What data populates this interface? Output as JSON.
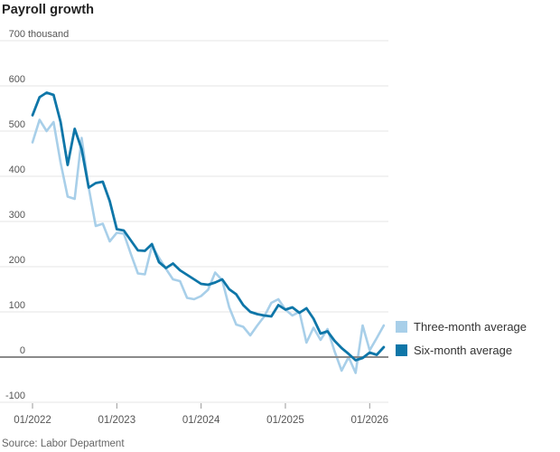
{
  "title": "Payroll growth",
  "source": "Source: Labor Department",
  "legend": [
    {
      "label": "Three-month average",
      "color": "#a8cfe9"
    },
    {
      "label": "Six-month average",
      "color": "#0e76a8"
    }
  ],
  "colors": {
    "gridline": "#e4e4e4",
    "zero_line": "#8a8a8a",
    "tick": "#999999",
    "axis_text": "#555555"
  },
  "chart_data": {
    "type": "line",
    "title": "Payroll growth",
    "y_unit": "thousand",
    "ylim": [
      -100,
      700
    ],
    "grid": true,
    "legend_position": "right",
    "y_ticks": [
      700,
      600,
      500,
      400,
      300,
      200,
      100,
      0,
      -100
    ],
    "x_ticks": [
      {
        "month_index": 0,
        "label": "01/2022"
      },
      {
        "month_index": 12,
        "label": "01/2023"
      },
      {
        "month_index": 24,
        "label": "01/2024"
      },
      {
        "month_index": 36,
        "label": "01/2025"
      },
      {
        "month_index": 48,
        "label": "01/2026"
      }
    ],
    "x": [
      "01/2022",
      "02/2022",
      "03/2022",
      "04/2022",
      "05/2022",
      "06/2022",
      "07/2022",
      "08/2022",
      "09/2022",
      "10/2022",
      "11/2022",
      "12/2022",
      "01/2023",
      "02/2023",
      "03/2023",
      "04/2023",
      "05/2023",
      "06/2023",
      "07/2023",
      "08/2023",
      "09/2023",
      "10/2023",
      "11/2023",
      "12/2023",
      "01/2024",
      "02/2024",
      "03/2024",
      "04/2024",
      "05/2024",
      "06/2024",
      "07/2024",
      "08/2024",
      "09/2024",
      "10/2024",
      "11/2024",
      "12/2024",
      "01/2025",
      "02/2025",
      "03/2025",
      "04/2025",
      "05/2025",
      "06/2025",
      "07/2025",
      "08/2025",
      "09/2025",
      "10/2025",
      "11/2025",
      "12/2025",
      "01/2026",
      "02/2026",
      "03/2026"
    ],
    "series": [
      {
        "name": "Three-month average",
        "color": "#a8cfe9",
        "values": [
          475,
          525,
          500,
          520,
          430,
          355,
          350,
          485,
          375,
          290,
          295,
          256,
          275,
          273,
          228,
          185,
          183,
          246,
          220,
          195,
          172,
          168,
          131,
          128,
          135,
          149,
          187,
          170,
          110,
          72,
          67,
          48,
          70,
          90,
          120,
          128,
          105,
          92,
          100,
          32,
          65,
          38,
          62,
          13,
          -30,
          0,
          -35,
          70,
          15,
          42,
          70
        ]
      },
      {
        "name": "Six-month average",
        "color": "#0e76a8",
        "values": [
          535,
          575,
          585,
          580,
          520,
          425,
          505,
          460,
          375,
          385,
          388,
          345,
          283,
          280,
          258,
          236,
          235,
          250,
          210,
          197,
          207,
          192,
          182,
          172,
          162,
          160,
          165,
          172,
          150,
          139,
          115,
          100,
          95,
          92,
          90,
          115,
          105,
          110,
          98,
          108,
          85,
          52,
          57,
          36,
          20,
          7,
          -7,
          -2,
          10,
          5,
          22
        ]
      }
    ]
  }
}
